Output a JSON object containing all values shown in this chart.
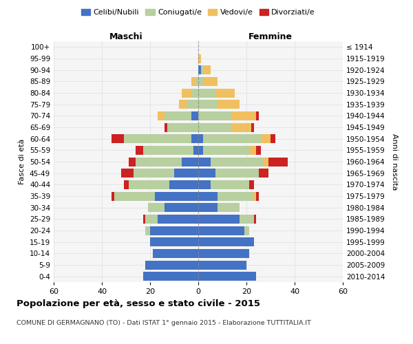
{
  "age_groups": [
    "0-4",
    "5-9",
    "10-14",
    "15-19",
    "20-24",
    "25-29",
    "30-34",
    "35-39",
    "40-44",
    "45-49",
    "50-54",
    "55-59",
    "60-64",
    "65-69",
    "70-74",
    "75-79",
    "80-84",
    "85-89",
    "90-94",
    "95-99",
    "100+"
  ],
  "birth_years": [
    "2010-2014",
    "2005-2009",
    "2000-2004",
    "1995-1999",
    "1990-1994",
    "1985-1989",
    "1980-1984",
    "1975-1979",
    "1970-1974",
    "1965-1969",
    "1960-1964",
    "1955-1959",
    "1950-1954",
    "1945-1949",
    "1940-1944",
    "1935-1939",
    "1930-1934",
    "1925-1929",
    "1920-1924",
    "1915-1919",
    "≤ 1914"
  ],
  "males": {
    "celibi": [
      23,
      22,
      19,
      20,
      20,
      17,
      14,
      18,
      12,
      10,
      7,
      2,
      3,
      0,
      3,
      0,
      0,
      0,
      0,
      0,
      0
    ],
    "coniugati": [
      0,
      0,
      0,
      0,
      2,
      5,
      7,
      17,
      17,
      17,
      19,
      21,
      28,
      13,
      11,
      5,
      3,
      1,
      0,
      0,
      0
    ],
    "vedovi": [
      0,
      0,
      0,
      0,
      0,
      0,
      0,
      0,
      0,
      0,
      0,
      0,
      0,
      0,
      3,
      3,
      4,
      2,
      0,
      0,
      0
    ],
    "divorziati": [
      0,
      0,
      0,
      0,
      0,
      1,
      0,
      1,
      2,
      5,
      3,
      3,
      5,
      1,
      0,
      0,
      0,
      0,
      0,
      0,
      0
    ]
  },
  "females": {
    "nubili": [
      24,
      20,
      21,
      23,
      19,
      17,
      8,
      8,
      5,
      7,
      5,
      2,
      2,
      0,
      0,
      0,
      0,
      0,
      1,
      0,
      0
    ],
    "coniugate": [
      0,
      0,
      0,
      0,
      2,
      6,
      9,
      15,
      16,
      18,
      22,
      19,
      24,
      14,
      14,
      8,
      7,
      2,
      1,
      0,
      0
    ],
    "vedove": [
      0,
      0,
      0,
      0,
      0,
      0,
      0,
      1,
      0,
      0,
      2,
      3,
      4,
      8,
      10,
      9,
      8,
      6,
      3,
      1,
      0
    ],
    "divorziate": [
      0,
      0,
      0,
      0,
      0,
      1,
      0,
      1,
      2,
      4,
      8,
      2,
      2,
      1,
      1,
      0,
      0,
      0,
      0,
      0,
      0
    ]
  },
  "color_celibi": "#4472c4",
  "color_coniugati": "#b8cfa0",
  "color_vedovi": "#f0c060",
  "color_divorziati": "#cc2222",
  "title": "Popolazione per età, sesso e stato civile - 2015",
  "subtitle": "COMUNE DI GERMAGNANO (TO) - Dati ISTAT 1° gennaio 2015 - Elaborazione TUTTITALIA.IT",
  "xlabel_left": "Maschi",
  "xlabel_right": "Femmine",
  "ylabel_left": "Fasce di età",
  "ylabel_right": "Anni di nascita",
  "xlim": 60,
  "bg_color": "#f5f5f5",
  "grid_color": "#dddddd"
}
